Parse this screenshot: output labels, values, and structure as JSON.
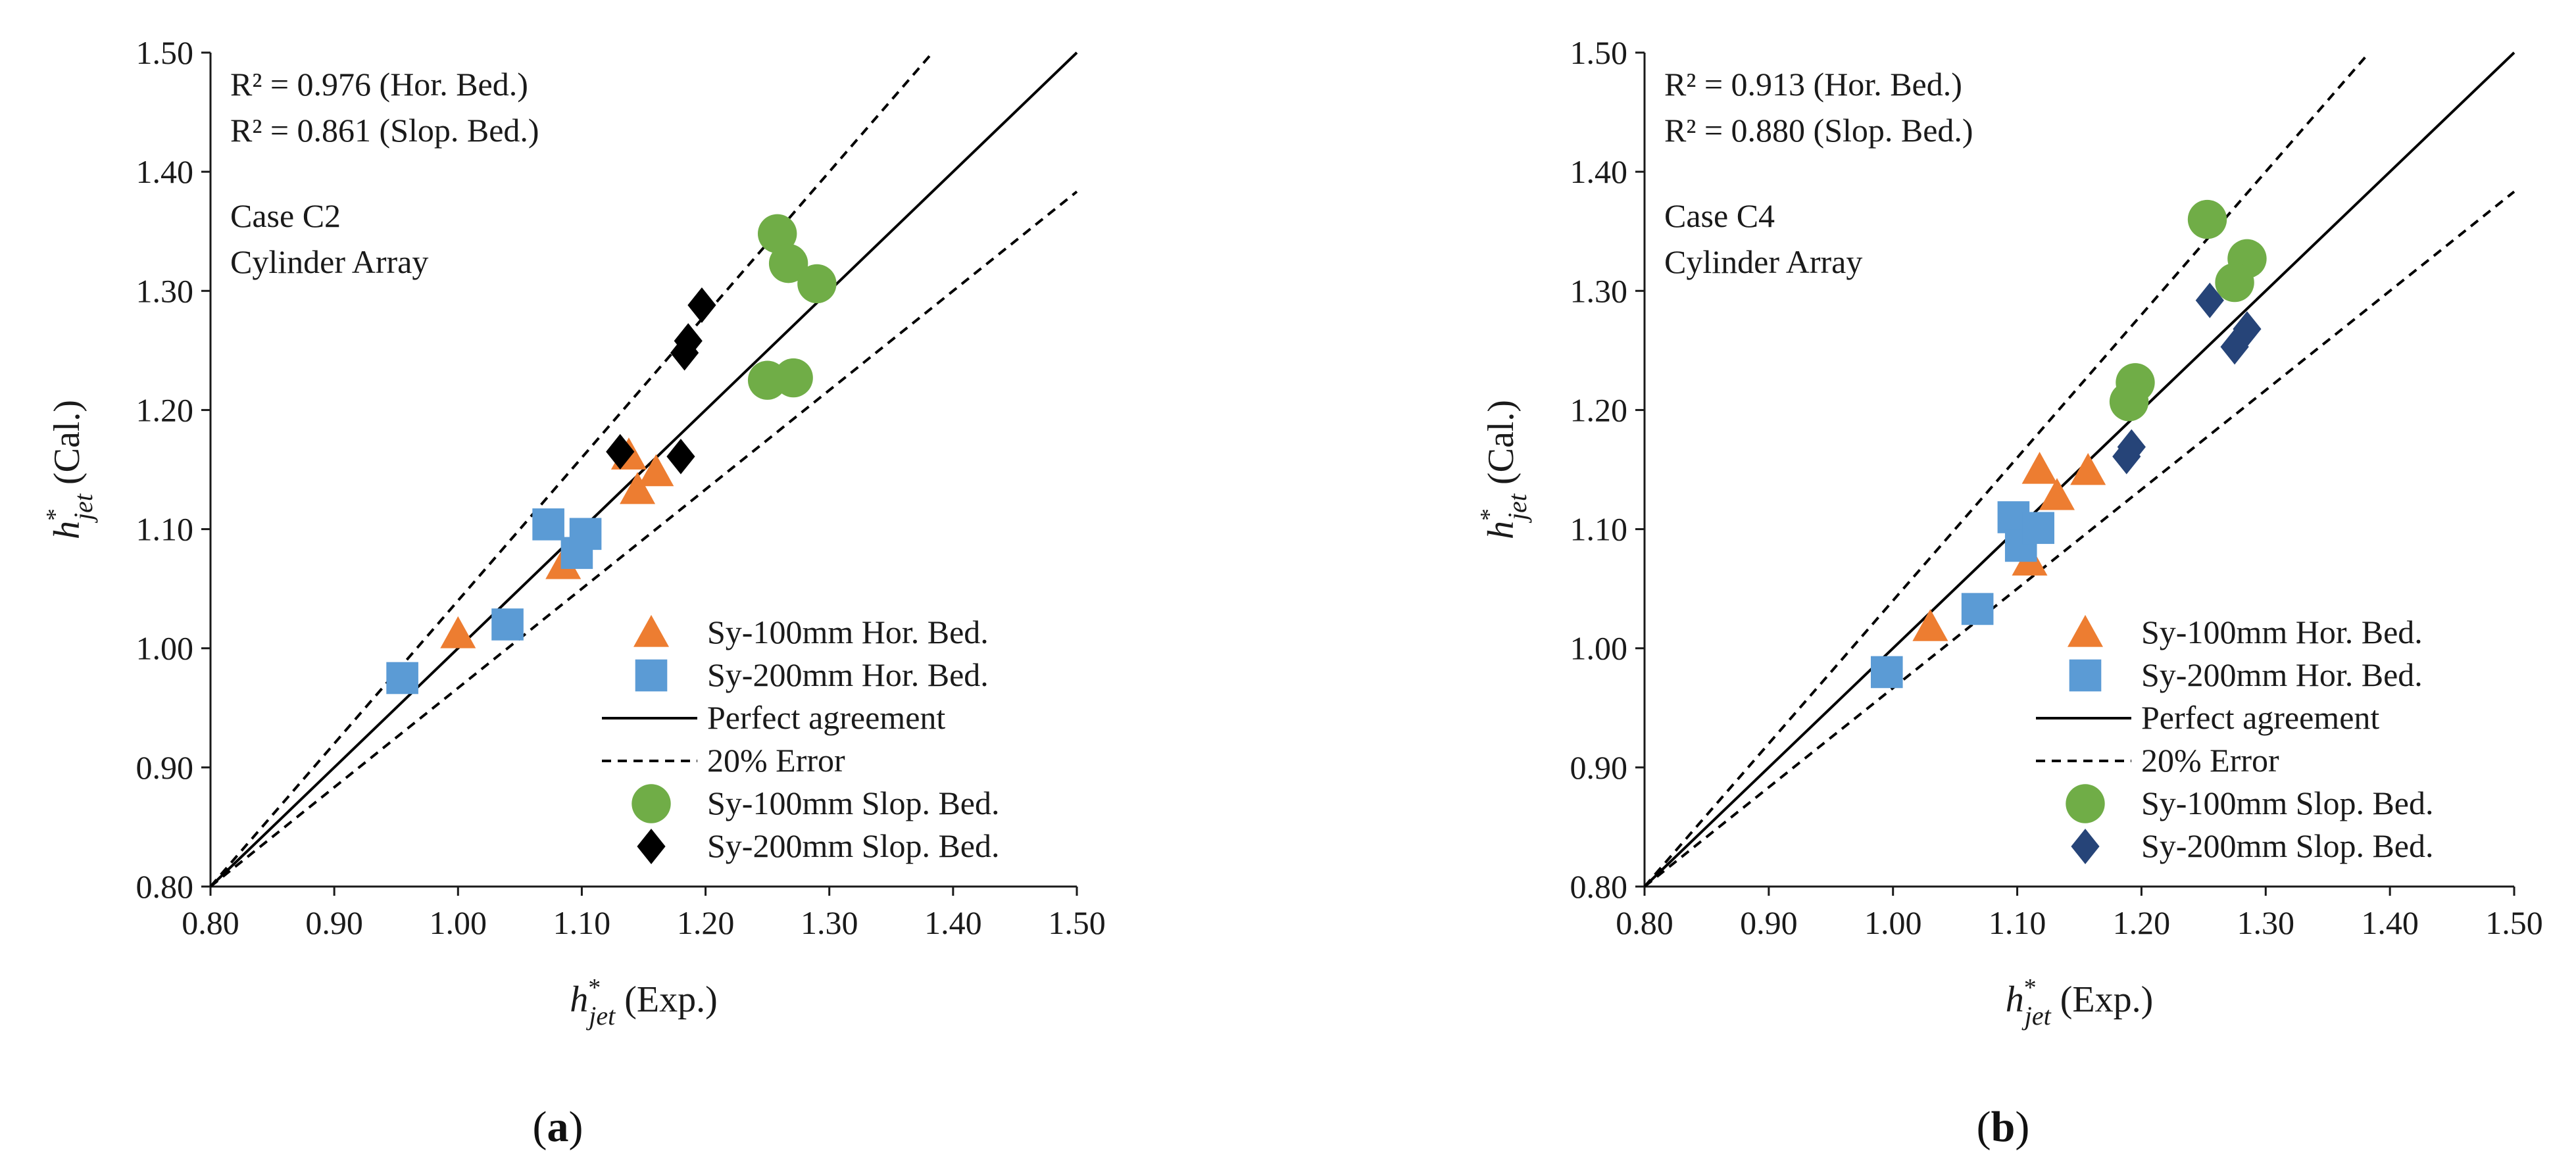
{
  "colors": {
    "triangle": "#ED7D31",
    "square": "#5B9BD5",
    "circle": "#70AD47",
    "diamond_a": "#000000",
    "diamond_b": "#264478",
    "axis": "#1a1a1a"
  },
  "legend": {
    "tri": "Sy-100mm Hor. Bed.",
    "sq": "Sy-200mm Hor. Bed.",
    "perfect": "Perfect agreement",
    "error": "20% Error",
    "circ": "Sy-100mm Slop. Bed.",
    "dia": "Sy-200mm Slop. Bed."
  },
  "axes": {
    "x_symbol": "h",
    "x_sup": "*",
    "x_sub": "jet",
    "x_tail": " (Exp.)",
    "y_symbol": "h",
    "y_sup": "*",
    "y_sub": "jet",
    "y_tail": " (Cal.)"
  },
  "chart_data": [
    {
      "type": "scatter",
      "caption": "a",
      "r2_hor": "R² = 0.976 (Hor. Bed.)",
      "r2_slop": "R² = 0.861 (Slop. Bed.)",
      "case_line1": "Case C2",
      "case_line2": "Cylinder Array",
      "xlim": [
        0.8,
        1.5
      ],
      "ylim": [
        0.8,
        1.5
      ],
      "ticks": [
        "0.80",
        "0.90",
        "1.00",
        "1.10",
        "1.20",
        "1.30",
        "1.40",
        "1.50"
      ],
      "error_upper_slope": 1.2,
      "error_lower_slope": 0.8333,
      "series": [
        {
          "name": "Sy-100mm Hor. Bed.",
          "marker": "triangle",
          "x": [
            1.0,
            1.085,
            1.138,
            1.145,
            1.16
          ],
          "y": [
            1.012,
            1.07,
            1.162,
            1.133,
            1.148
          ]
        },
        {
          "name": "Sy-200mm Hor. Bed.",
          "marker": "square",
          "x": [
            0.955,
            1.04,
            1.073,
            1.096,
            1.103
          ],
          "y": [
            0.975,
            1.02,
            1.104,
            1.08,
            1.096
          ]
        },
        {
          "name": "Sy-100mm Slop. Bed.",
          "marker": "circle",
          "x": [
            1.258,
            1.267,
            1.29,
            1.25,
            1.271
          ],
          "y": [
            1.348,
            1.323,
            1.306,
            1.225,
            1.227
          ]
        },
        {
          "name": "Sy-200mm Slop. Bed.",
          "marker": "diamond",
          "x": [
            1.197,
            1.186,
            1.183,
            1.131,
            1.18
          ],
          "y": [
            1.288,
            1.258,
            1.248,
            1.165,
            1.161
          ]
        }
      ]
    },
    {
      "type": "scatter",
      "caption": "b",
      "r2_hor": "R² = 0.913 (Hor. Bed.)",
      "r2_slop": "R² = 0.880 (Slop. Bed.)",
      "case_line1": "Case C4",
      "case_line2": "Cylinder Array",
      "xlim": [
        0.8,
        1.5
      ],
      "ylim": [
        0.8,
        1.5
      ],
      "ticks": [
        "0.80",
        "0.90",
        "1.00",
        "1.10",
        "1.20",
        "1.30",
        "1.40",
        "1.50"
      ],
      "error_upper_slope": 1.2,
      "error_lower_slope": 0.8333,
      "series": [
        {
          "name": "Sy-100mm Hor. Bed.",
          "marker": "triangle",
          "x": [
            1.03,
            1.11,
            1.118,
            1.132,
            1.157
          ],
          "y": [
            1.018,
            1.073,
            1.15,
            1.128,
            1.149
          ]
        },
        {
          "name": "Sy-200mm Hor. Bed.",
          "marker": "square",
          "x": [
            0.995,
            1.068,
            1.097,
            1.103,
            1.117
          ],
          "y": [
            0.98,
            1.033,
            1.11,
            1.086,
            1.101
          ]
        },
        {
          "name": "Sy-100mm Slop. Bed.",
          "marker": "circle",
          "x": [
            1.253,
            1.285,
            1.275,
            1.195,
            1.19
          ],
          "y": [
            1.36,
            1.327,
            1.307,
            1.223,
            1.207
          ]
        },
        {
          "name": "Sy-200mm Slop. Bed.",
          "marker": "diamond",
          "x": [
            1.255,
            1.285,
            1.275,
            1.192,
            1.188
          ],
          "y": [
            1.292,
            1.268,
            1.253,
            1.169,
            1.161
          ]
        }
      ]
    }
  ]
}
